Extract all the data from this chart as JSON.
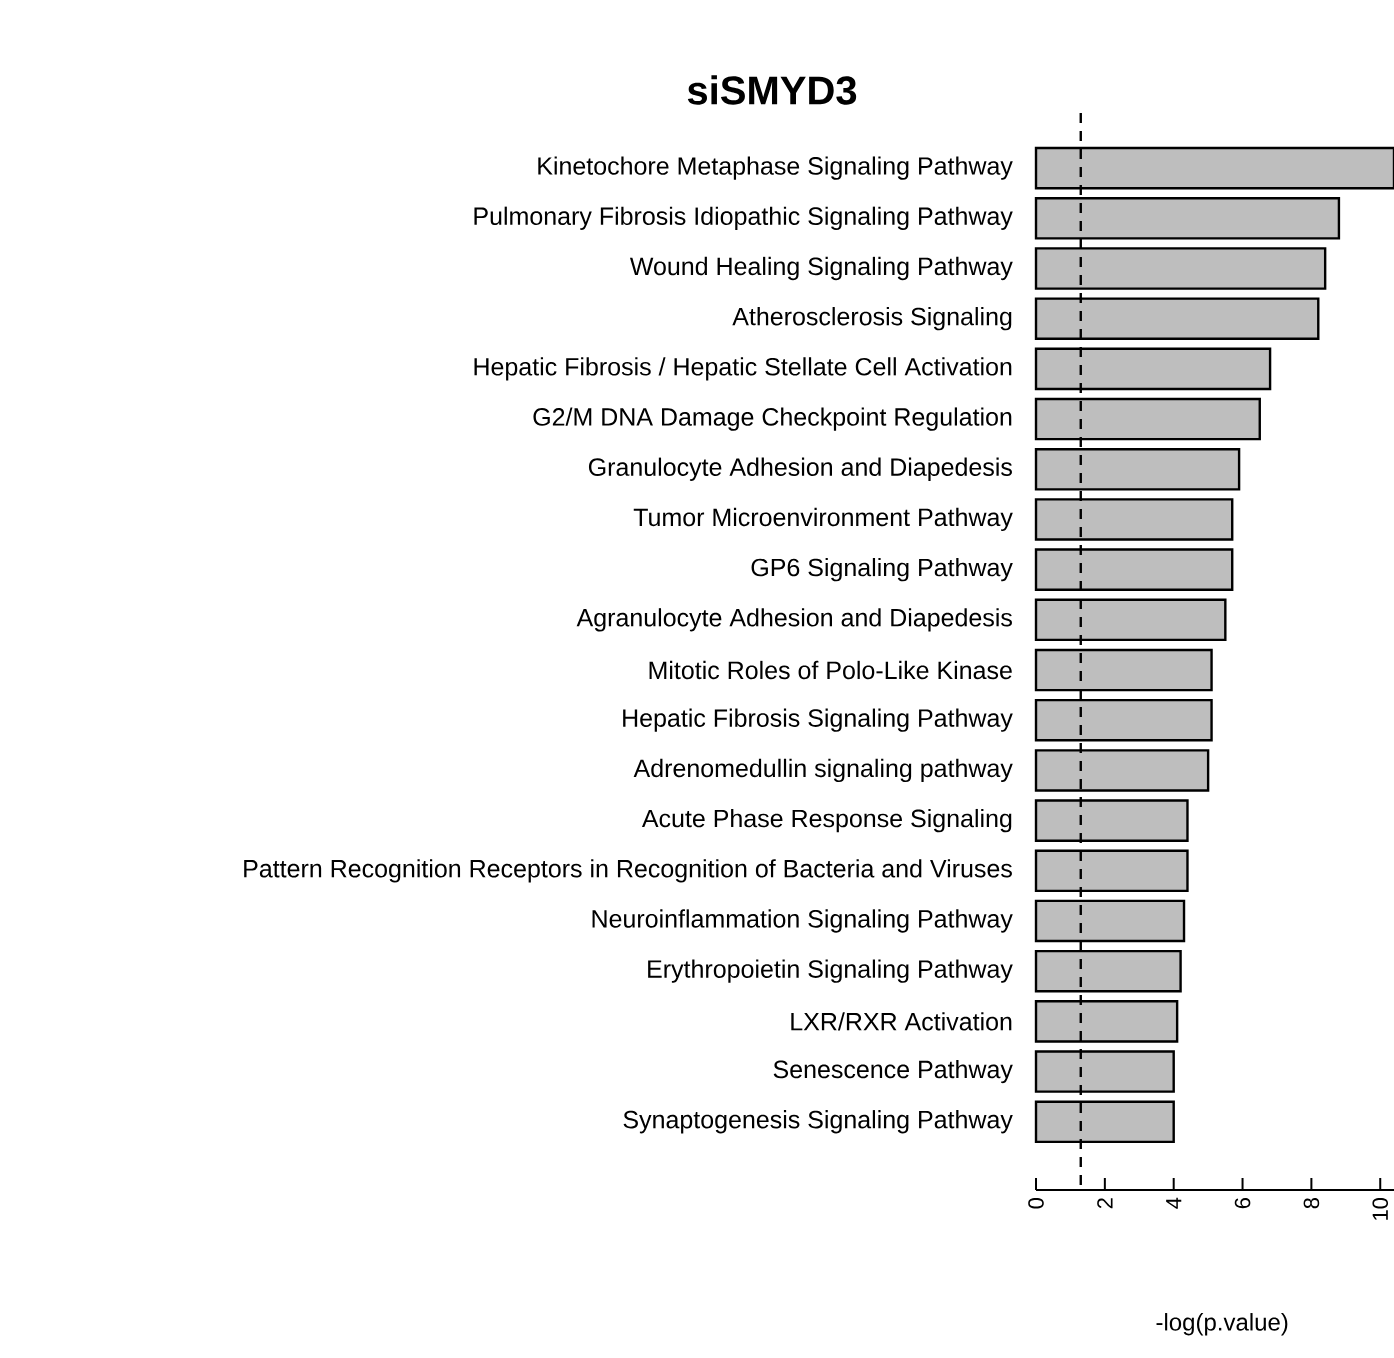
{
  "chart_data": {
    "type": "bar",
    "orientation": "horizontal",
    "title": "siSMYD3",
    "xlabel": "-log(p.value)",
    "categories": [
      "Kinetochore Metaphase Signaling Pathway",
      "Pulmonary Fibrosis Idiopathic Signaling Pathway",
      "Wound Healing Signaling Pathway",
      "Atherosclerosis Signaling",
      "Hepatic Fibrosis / Hepatic Stellate Cell Activation",
      "G2/M DNA Damage Checkpoint Regulation",
      "Granulocyte Adhesion and Diapedesis",
      "Tumor Microenvironment Pathway",
      "GP6 Signaling Pathway",
      "Agranulocyte Adhesion and Diapedesis",
      "Mitotic Roles of Polo-Like Kinase",
      "Hepatic Fibrosis Signaling Pathway",
      "Adrenomedullin signaling pathway",
      "Acute Phase Response Signaling",
      "Pattern Recognition Receptors in Recognition of Bacteria and Viruses",
      "Neuroinflammation Signaling Pathway",
      "Erythropoietin Signaling Pathway",
      "LXR/RXR Activation",
      "Senescence Pathway",
      "Synaptogenesis Signaling Pathway"
    ],
    "values": [
      10.4,
      8.8,
      8.4,
      8.2,
      6.8,
      6.5,
      5.9,
      5.7,
      5.7,
      5.5,
      5.1,
      5.1,
      5.0,
      4.4,
      4.4,
      4.3,
      4.2,
      4.1,
      4.0,
      4.0
    ],
    "color": "#bebebe",
    "xlim": [
      0,
      10.4
    ],
    "xticks": [
      0,
      2,
      4,
      6,
      8,
      10
    ],
    "ref_lines": [
      {
        "axis": "x",
        "value": 1.3,
        "line_style": "dashed"
      }
    ]
  }
}
